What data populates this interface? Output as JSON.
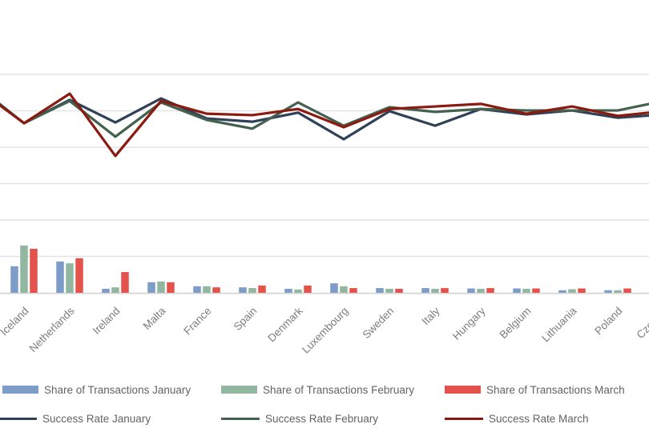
{
  "chart_data": {
    "type": "combo-bar-line",
    "title": "",
    "note": "Chart is cropped: no y-axis tick labels visible; first and last country labels partially cut. Values estimated from gridlines (one gridline step treated as 10 units, baseline = 0).",
    "categories": [
      "Iceland",
      "Netherlands",
      "Ireland",
      "Malta",
      "France",
      "Spain",
      "Denmark",
      "Luxembourg",
      "Sweden",
      "Italy",
      "Hungary",
      "Belgium",
      "Lithuania",
      "Poland",
      "Czechia"
    ],
    "bar_series": [
      {
        "name": "Share of Transactions January",
        "color_key": "share_jan",
        "values": [
          7.3,
          8.6,
          1.1,
          2.9,
          1.8,
          1.5,
          1.1,
          2.6,
          1.3,
          1.3,
          1.2,
          1.2,
          0.7,
          0.7,
          0.5
        ]
      },
      {
        "name": "Share of Transactions February",
        "color_key": "share_feb",
        "values": [
          13.0,
          8.1,
          1.5,
          3.1,
          1.8,
          1.3,
          0.9,
          1.8,
          1.1,
          1.1,
          1.1,
          1.1,
          1.0,
          0.7,
          0.6
        ]
      },
      {
        "name": "Share of Transactions March",
        "color_key": "share_mar",
        "values": [
          12.1,
          9.5,
          5.7,
          2.9,
          1.5,
          2.0,
          2.0,
          1.3,
          1.1,
          1.3,
          1.3,
          1.2,
          1.2,
          1.2,
          1.0
        ]
      }
    ],
    "line_series": [
      {
        "name": "Success Rate January",
        "color_key": "rate_jan",
        "lead_in": 56.5,
        "values": [
          46.6,
          53.0,
          46.8,
          53.4,
          47.9,
          47.0,
          49.5,
          42.2,
          49.9,
          45.9,
          50.5,
          49.0,
          50.1,
          48.1,
          49.0
        ]
      },
      {
        "name": "Success Rate February",
        "color_key": "rate_feb",
        "lead_in": 56.2,
        "values": [
          46.6,
          52.7,
          42.9,
          52.3,
          47.5,
          45.1,
          52.3,
          45.9,
          51.0,
          49.7,
          50.5,
          50.1,
          50.1,
          50.1,
          52.7
        ]
      },
      {
        "name": "Success Rate March",
        "color_key": "rate_mar",
        "lead_in": 55.9,
        "values": [
          46.6,
          54.7,
          37.6,
          52.7,
          49.2,
          48.8,
          50.5,
          45.5,
          50.5,
          51.2,
          51.9,
          49.2,
          51.2,
          48.6,
          49.9
        ]
      }
    ],
    "axis": {
      "ylim": [
        0,
        80
      ],
      "gridline_values": [
        10,
        20,
        30,
        40,
        50,
        60
      ],
      "grid": true,
      "y_tick_labels_visible": false,
      "xlabel": "",
      "ylabel": ""
    },
    "legend_position": "bottom"
  },
  "colors": {
    "share_jan": "#7d9cc8",
    "share_feb": "#92b7a1",
    "share_mar": "#e4534b",
    "rate_jan": "#2f4157",
    "rate_feb": "#44604f",
    "rate_mar": "#8b1a10",
    "gridline": "#e3e3e3",
    "axis_line": "#d8d8d8",
    "label_text": "#7d7d7d",
    "legend_text": "#636363",
    "background": "#ffffff"
  }
}
